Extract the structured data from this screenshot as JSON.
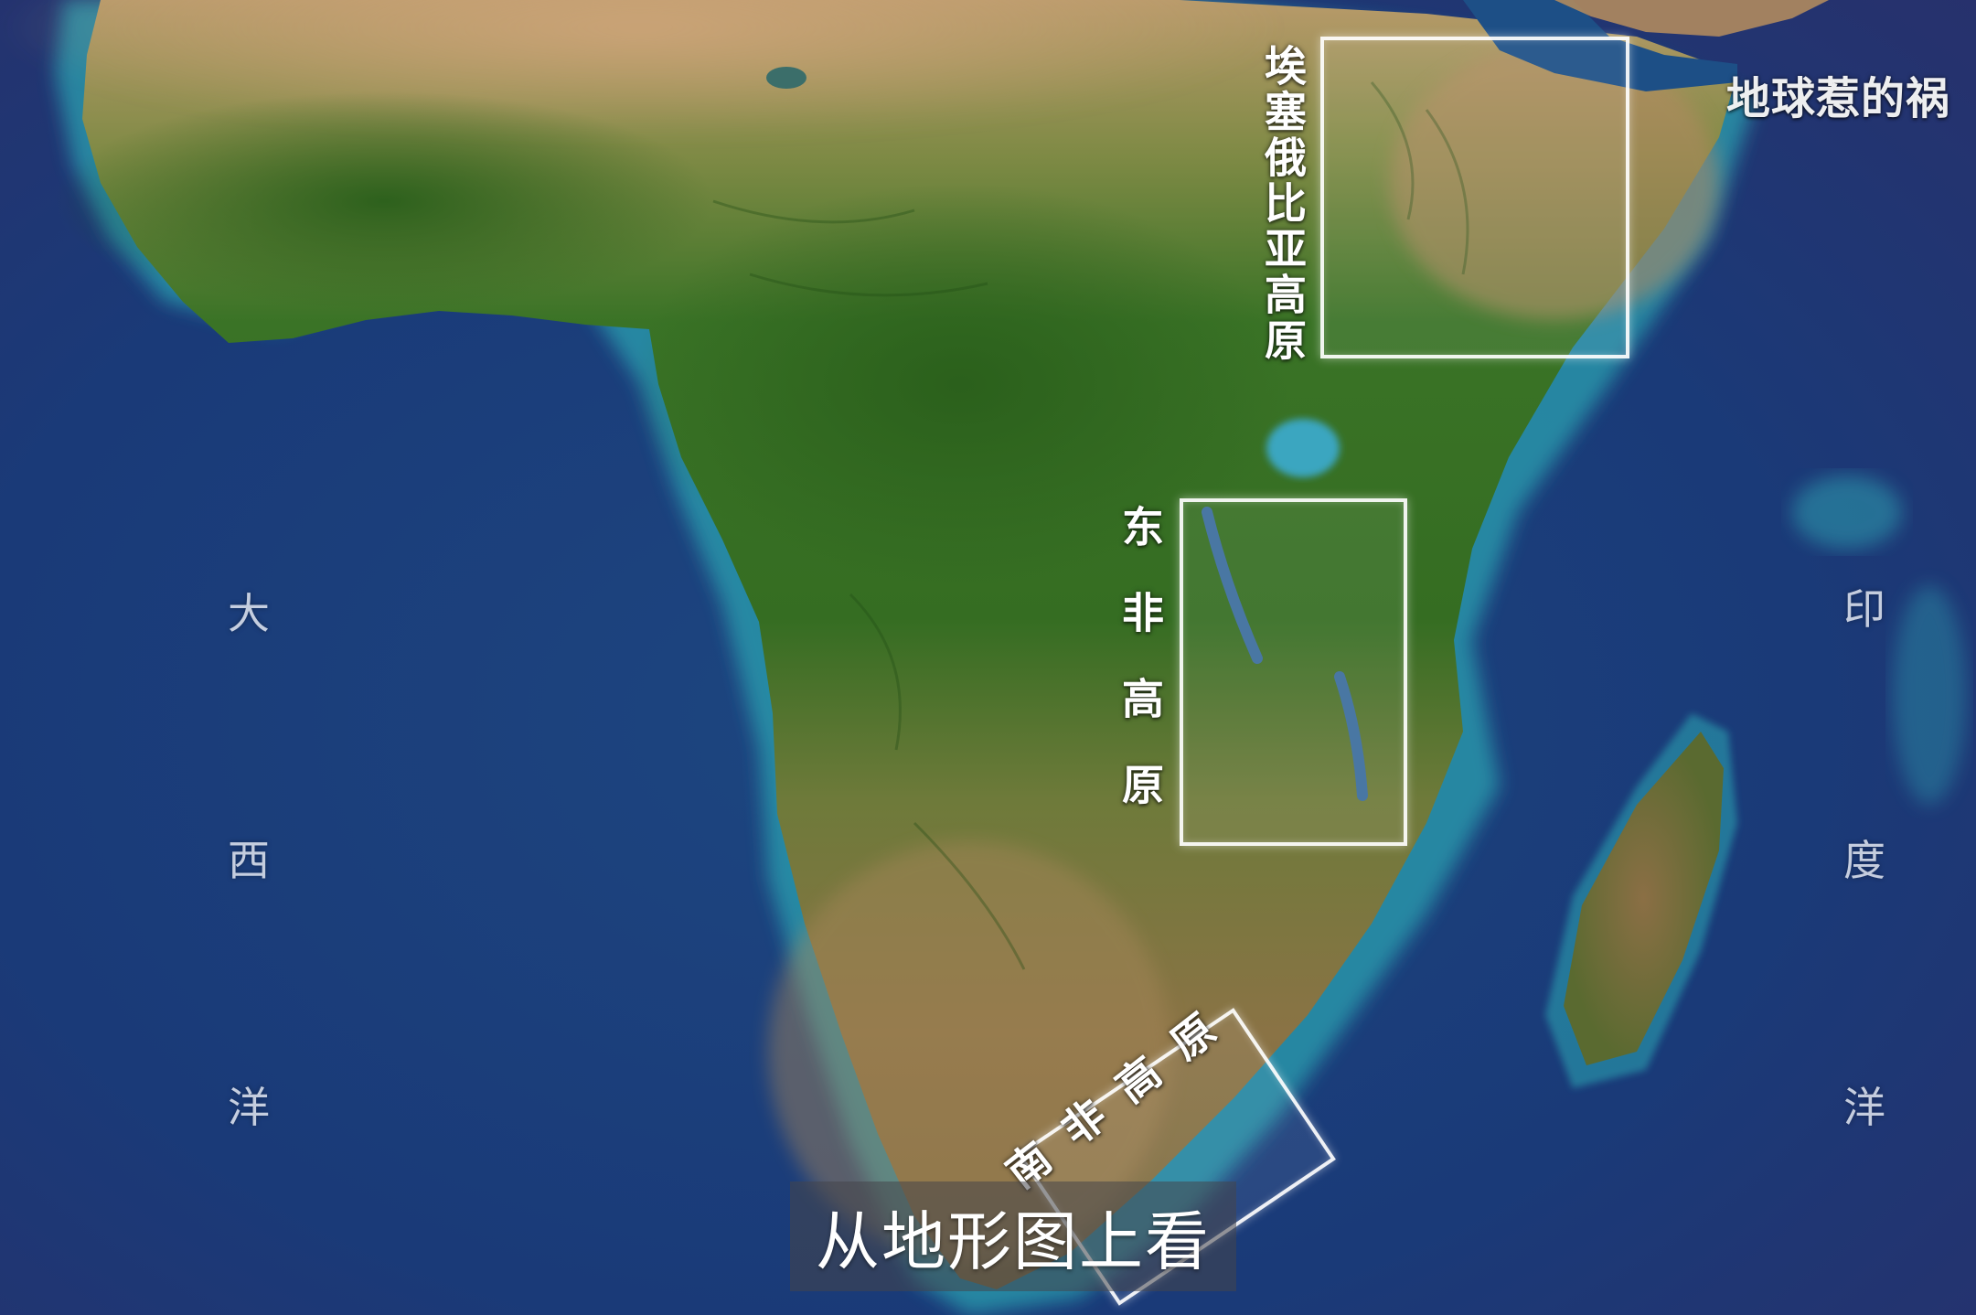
{
  "map": {
    "title": "从地形图上看",
    "watermark": "地球惹的祸",
    "oceans": {
      "atlantic": [
        "大",
        "西",
        "洋"
      ],
      "indian": [
        "印",
        "度",
        "洋"
      ]
    },
    "regions": {
      "ethiopia": "埃塞俄比亚高原",
      "east_africa": "东非高原",
      "south_africa": "南非高原"
    }
  },
  "colors": {
    "deep_ocean": "#1a2f6a",
    "shelf_water": "#2aa3b3",
    "rainforest": "#2f6a1e",
    "savanna": "#8a7a45",
    "desert": "#c9a77a",
    "box_stroke": "#ffffff"
  }
}
